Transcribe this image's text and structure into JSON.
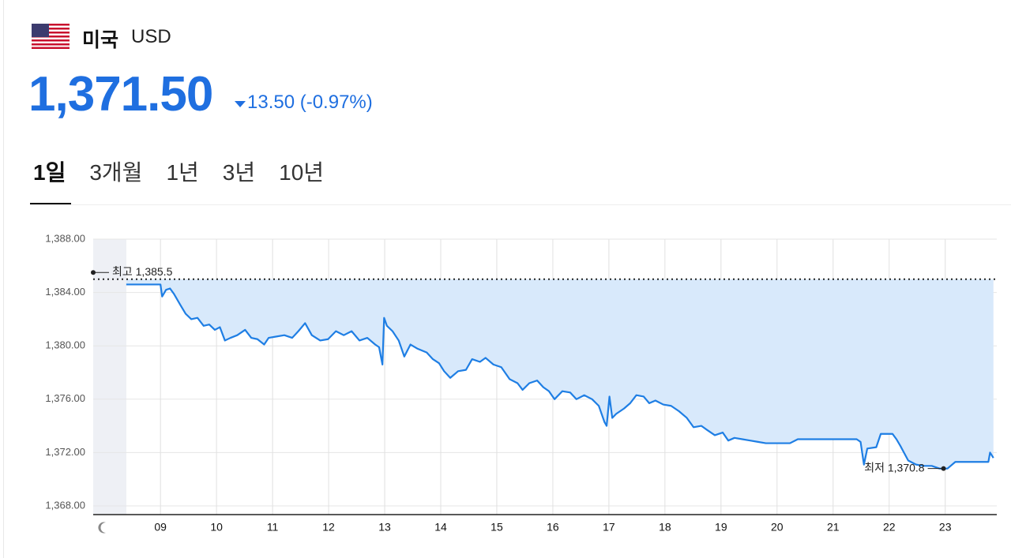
{
  "header": {
    "country": "미국",
    "currency": "USD",
    "price": "1,371.50",
    "change": "13.50 (-0.97%)"
  },
  "tabs": [
    "1일",
    "3개월",
    "1년",
    "3년",
    "10년"
  ],
  "chart_data": {
    "type": "line",
    "color": "#1e7ee4",
    "fill_color": "#d8e9fb",
    "grid": true,
    "xlim": [
      7.8,
      23.92
    ],
    "ylim": [
      1368,
      1388
    ],
    "yticks": [
      {
        "value": 1368,
        "label": "1,368.00"
      },
      {
        "value": 1372,
        "label": "1,372.00"
      },
      {
        "value": 1376,
        "label": "1,376.00"
      },
      {
        "value": 1380,
        "label": "1,380.00"
      },
      {
        "value": 1384,
        "label": "1,384.00"
      },
      {
        "value": 1388,
        "label": "1,388.00"
      }
    ],
    "xticks": [
      {
        "value": 9,
        "label": "09"
      },
      10,
      11,
      12,
      13,
      14,
      15,
      16,
      17,
      18,
      19,
      20,
      21,
      22,
      23
    ],
    "reference_line": 1385,
    "annotations": [
      {
        "label": "최고 1,385.5",
        "x": 7.8,
        "value": 1385.5
      },
      {
        "label": "최저 1,370.8",
        "x": 22.97,
        "value": 1370.8
      }
    ],
    "x": [
      8.39,
      9.0,
      9.03,
      9.1,
      9.17,
      9.24,
      9.35,
      9.45,
      9.55,
      9.66,
      9.77,
      9.87,
      9.97,
      10.06,
      10.15,
      10.25,
      10.37,
      10.51,
      10.62,
      10.73,
      10.85,
      10.93,
      11.07,
      11.21,
      11.35,
      11.46,
      11.58,
      11.7,
      11.85,
      11.99,
      12.13,
      12.27,
      12.41,
      12.55,
      12.69,
      12.83,
      12.9,
      12.96,
      12.99,
      13.04,
      13.14,
      13.25,
      13.35,
      13.46,
      13.58,
      13.75,
      13.86,
      13.97,
      14.06,
      14.17,
      14.31,
      14.45,
      14.56,
      14.7,
      14.8,
      14.94,
      15.08,
      15.23,
      15.37,
      15.46,
      15.58,
      15.72,
      15.83,
      15.93,
      16.03,
      16.17,
      16.31,
      16.42,
      16.56,
      16.7,
      16.82,
      16.92,
      16.96,
      17.01,
      17.06,
      17.13,
      17.27,
      17.38,
      17.49,
      17.62,
      17.72,
      17.83,
      17.97,
      18.11,
      18.25,
      18.39,
      18.51,
      18.65,
      18.75,
      18.89,
      19.03,
      19.13,
      19.24,
      19.38,
      19.52,
      19.66,
      19.8,
      19.94,
      20.23,
      20.37,
      21.42,
      21.49,
      21.55,
      21.61,
      21.77,
      21.85,
      22.06,
      22.13,
      22.2,
      22.34,
      22.48,
      22.62,
      22.76,
      22.9,
      23.04,
      23.18,
      23.77,
      23.8,
      23.86
    ],
    "values": [
      1384.6,
      1384.6,
      1383.7,
      1384.2,
      1384.3,
      1383.9,
      1383.1,
      1382.4,
      1382.0,
      1382.1,
      1381.5,
      1381.6,
      1381.2,
      1381.4,
      1380.4,
      1380.6,
      1380.8,
      1381.2,
      1380.6,
      1380.5,
      1380.1,
      1380.6,
      1380.7,
      1380.8,
      1380.6,
      1381.1,
      1381.7,
      1380.8,
      1380.4,
      1380.5,
      1381.1,
      1380.8,
      1381.1,
      1380.4,
      1380.6,
      1380.1,
      1379.9,
      1378.6,
      1382.1,
      1381.5,
      1381.1,
      1380.4,
      1379.2,
      1380.1,
      1379.8,
      1379.5,
      1379.0,
      1378.7,
      1378.1,
      1377.6,
      1378.1,
      1378.2,
      1379.0,
      1378.8,
      1379.1,
      1378.6,
      1378.4,
      1377.5,
      1377.2,
      1376.7,
      1377.2,
      1377.4,
      1376.9,
      1376.6,
      1376.0,
      1376.6,
      1376.5,
      1376.0,
      1376.3,
      1376.0,
      1375.5,
      1374.3,
      1374.0,
      1376.2,
      1374.6,
      1374.9,
      1375.3,
      1375.7,
      1376.3,
      1376.2,
      1375.7,
      1375.9,
      1375.6,
      1375.5,
      1375.1,
      1374.6,
      1373.9,
      1374.0,
      1373.7,
      1373.3,
      1373.5,
      1372.9,
      1373.1,
      1373.0,
      1372.9,
      1372.8,
      1372.7,
      1372.7,
      1372.7,
      1373.0,
      1373.0,
      1372.8,
      1371.1,
      1372.3,
      1372.4,
      1373.4,
      1373.4,
      1373.0,
      1372.5,
      1371.4,
      1371.1,
      1371.0,
      1371.0,
      1370.8,
      1370.8,
      1371.3,
      1371.3,
      1372.0,
      1371.6
    ]
  }
}
